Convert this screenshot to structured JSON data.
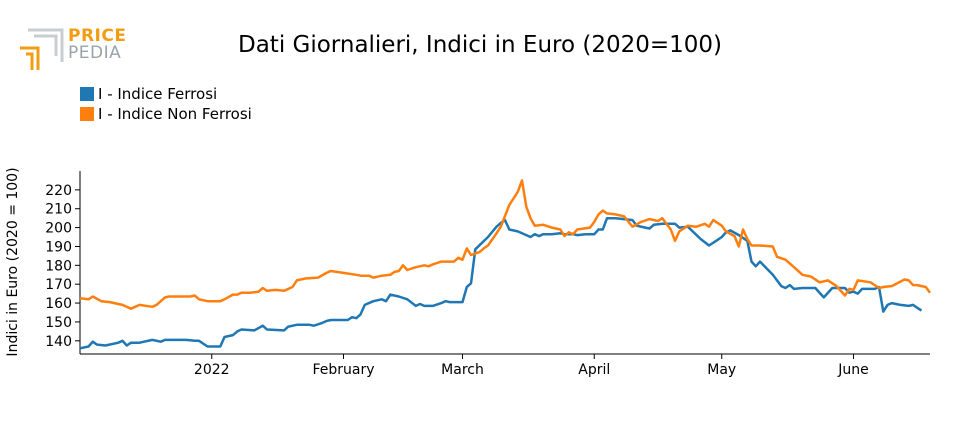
{
  "brand": {
    "line1": "PRICE",
    "line2": "PEDIA"
  },
  "chart_data": {
    "type": "line",
    "title": "Dati Giornalieri, Indici in Euro (2020=100)",
    "ylabel": "Indici in Euro (2020 = 100)",
    "xlabel": "",
    "ylim": [
      133,
      230
    ],
    "xlim": [
      "2021-12-01",
      "2022-06-19"
    ],
    "yticks": [
      140,
      150,
      160,
      170,
      180,
      190,
      200,
      210,
      220
    ],
    "xticks": [
      {
        "date": "2022-01-01",
        "label": "2022"
      },
      {
        "date": "2022-02-01",
        "label": "February"
      },
      {
        "date": "2022-03-01",
        "label": "March"
      },
      {
        "date": "2022-04-01",
        "label": "April"
      },
      {
        "date": "2022-05-01",
        "label": "May"
      },
      {
        "date": "2022-06-01",
        "label": "June"
      }
    ],
    "legend_position": "top-left",
    "series": [
      {
        "name": "I - Indice Ferrosi",
        "color": "#1f77b4",
        "points": [
          [
            "2021-12-01",
            136
          ],
          [
            "2021-12-03",
            137
          ],
          [
            "2021-12-04",
            139.5
          ],
          [
            "2021-12-05",
            138
          ],
          [
            "2021-12-07",
            137.5
          ],
          [
            "2021-12-10",
            139
          ],
          [
            "2021-12-11",
            140
          ],
          [
            "2021-12-12",
            137.5
          ],
          [
            "2021-12-13",
            139
          ],
          [
            "2021-12-15",
            139
          ],
          [
            "2021-12-18",
            140.5
          ],
          [
            "2021-12-20",
            139.5
          ],
          [
            "2021-12-21",
            140.5
          ],
          [
            "2021-12-24",
            140.5
          ],
          [
            "2021-12-26",
            140.5
          ],
          [
            "2021-12-28",
            140
          ],
          [
            "2021-12-29",
            140
          ],
          [
            "2021-12-31",
            137
          ],
          [
            "2022-01-03",
            137
          ],
          [
            "2022-01-04",
            142
          ],
          [
            "2022-01-06",
            143
          ],
          [
            "2022-01-07",
            145
          ],
          [
            "2022-01-08",
            146
          ],
          [
            "2022-01-11",
            145.5
          ],
          [
            "2022-01-13",
            148
          ],
          [
            "2022-01-14",
            146
          ],
          [
            "2022-01-18",
            145.5
          ],
          [
            "2022-01-19",
            147.5
          ],
          [
            "2022-01-21",
            148.5
          ],
          [
            "2022-01-24",
            148.5
          ],
          [
            "2022-01-25",
            148
          ],
          [
            "2022-01-27",
            149.5
          ],
          [
            "2022-01-28",
            150.5
          ],
          [
            "2022-01-29",
            151
          ],
          [
            "2022-02-02",
            151
          ],
          [
            "2022-02-03",
            152.5
          ],
          [
            "2022-02-04",
            152
          ],
          [
            "2022-02-05",
            154
          ],
          [
            "2022-02-06",
            159
          ],
          [
            "2022-02-08",
            161
          ],
          [
            "2022-02-10",
            162
          ],
          [
            "2022-02-11",
            161
          ],
          [
            "2022-02-12",
            164.5
          ],
          [
            "2022-02-14",
            163.5
          ],
          [
            "2022-02-16",
            162
          ],
          [
            "2022-02-18",
            158.5
          ],
          [
            "2022-02-19",
            159.5
          ],
          [
            "2022-02-20",
            158.5
          ],
          [
            "2022-02-22",
            158.5
          ],
          [
            "2022-02-24",
            160
          ],
          [
            "2022-02-25",
            161
          ],
          [
            "2022-02-26",
            160.5
          ],
          [
            "2022-02-28",
            160.5
          ],
          [
            "2022-03-01",
            160.5
          ],
          [
            "2022-03-02",
            168.5
          ],
          [
            "2022-03-03",
            170.5
          ],
          [
            "2022-03-04",
            188.5
          ],
          [
            "2022-03-07",
            195
          ],
          [
            "2022-03-09",
            200.5
          ],
          [
            "2022-03-10",
            202.5
          ],
          [
            "2022-03-11",
            204
          ],
          [
            "2022-03-12",
            199
          ],
          [
            "2022-03-14",
            198
          ],
          [
            "2022-03-16",
            196
          ],
          [
            "2022-03-17",
            195
          ],
          [
            "2022-03-18",
            196.5
          ],
          [
            "2022-03-19",
            195.5
          ],
          [
            "2022-03-20",
            196.5
          ],
          [
            "2022-03-22",
            196.5
          ],
          [
            "2022-03-24",
            197
          ],
          [
            "2022-03-25",
            196.5
          ],
          [
            "2022-03-27",
            196.5
          ],
          [
            "2022-03-28",
            196
          ],
          [
            "2022-03-30",
            196.5
          ],
          [
            "2022-04-01",
            196.5
          ],
          [
            "2022-04-02",
            199
          ],
          [
            "2022-04-03",
            199
          ],
          [
            "2022-04-04",
            205
          ],
          [
            "2022-04-06",
            205
          ],
          [
            "2022-04-08",
            204.5
          ],
          [
            "2022-04-10",
            204
          ],
          [
            "2022-04-11",
            201
          ],
          [
            "2022-04-13",
            200
          ],
          [
            "2022-04-14",
            199.5
          ],
          [
            "2022-04-15",
            201.5
          ],
          [
            "2022-04-17",
            202
          ],
          [
            "2022-04-20",
            202
          ],
          [
            "2022-04-21",
            200
          ],
          [
            "2022-04-23",
            200.5
          ],
          [
            "2022-04-26",
            194
          ],
          [
            "2022-04-28",
            190.5
          ],
          [
            "2022-04-30",
            193.5
          ],
          [
            "2022-05-01",
            195
          ],
          [
            "2022-05-02",
            197.5
          ],
          [
            "2022-05-03",
            198.5
          ],
          [
            "2022-05-05",
            196
          ],
          [
            "2022-05-07",
            193
          ],
          [
            "2022-05-08",
            182
          ],
          [
            "2022-05-09",
            179.5
          ],
          [
            "2022-05-10",
            182
          ],
          [
            "2022-05-13",
            175
          ],
          [
            "2022-05-15",
            169
          ],
          [
            "2022-05-16",
            168
          ],
          [
            "2022-05-17",
            169.5
          ],
          [
            "2022-05-18",
            167.5
          ],
          [
            "2022-05-20",
            168
          ],
          [
            "2022-05-23",
            168
          ],
          [
            "2022-05-25",
            163
          ],
          [
            "2022-05-27",
            168
          ],
          [
            "2022-05-30",
            168
          ],
          [
            "2022-05-31",
            165.5
          ],
          [
            "2022-06-01",
            166
          ],
          [
            "2022-06-02",
            165
          ],
          [
            "2022-06-03",
            167.5
          ],
          [
            "2022-06-06",
            167.5
          ],
          [
            "2022-06-07",
            168.5
          ],
          [
            "2022-06-08",
            155.5
          ],
          [
            "2022-06-09",
            159
          ],
          [
            "2022-06-10",
            160
          ],
          [
            "2022-06-12",
            159
          ],
          [
            "2022-06-14",
            158.5
          ],
          [
            "2022-06-15",
            159
          ],
          [
            "2022-06-16",
            157.5
          ],
          [
            "2022-06-17",
            156
          ]
        ]
      },
      {
        "name": "I - Indice Non Ferrosi",
        "color": "#ff7f0e",
        "points": [
          [
            "2021-12-01",
            162.5
          ],
          [
            "2021-12-03",
            162
          ],
          [
            "2021-12-04",
            163.5
          ],
          [
            "2021-12-06",
            161
          ],
          [
            "2021-12-08",
            160.5
          ],
          [
            "2021-12-11",
            159
          ],
          [
            "2021-12-13",
            157
          ],
          [
            "2021-12-14",
            158
          ],
          [
            "2021-12-15",
            159
          ],
          [
            "2021-12-18",
            158
          ],
          [
            "2021-12-19",
            159
          ],
          [
            "2021-12-21",
            163
          ],
          [
            "2021-12-22",
            163.5
          ],
          [
            "2021-12-24",
            163.5
          ],
          [
            "2021-12-27",
            163.5
          ],
          [
            "2021-12-28",
            164
          ],
          [
            "2021-12-29",
            162
          ],
          [
            "2021-12-31",
            161
          ],
          [
            "2022-01-03",
            161
          ],
          [
            "2022-01-04",
            162
          ],
          [
            "2022-01-06",
            164.5
          ],
          [
            "2022-01-07",
            164.5
          ],
          [
            "2022-01-08",
            165.5
          ],
          [
            "2022-01-10",
            165.5
          ],
          [
            "2022-01-12",
            166
          ],
          [
            "2022-01-13",
            168
          ],
          [
            "2022-01-14",
            166.5
          ],
          [
            "2022-01-16",
            167
          ],
          [
            "2022-01-18",
            166.5
          ],
          [
            "2022-01-20",
            168.5
          ],
          [
            "2022-01-21",
            172
          ],
          [
            "2022-01-23",
            173
          ],
          [
            "2022-01-26",
            173.5
          ],
          [
            "2022-01-28",
            176
          ],
          [
            "2022-01-29",
            177
          ],
          [
            "2022-02-01",
            176
          ],
          [
            "2022-02-04",
            175
          ],
          [
            "2022-02-05",
            174.5
          ],
          [
            "2022-02-07",
            174.5
          ],
          [
            "2022-02-08",
            173.5
          ],
          [
            "2022-02-10",
            174.5
          ],
          [
            "2022-02-12",
            175
          ],
          [
            "2022-02-13",
            176.5
          ],
          [
            "2022-02-14",
            177
          ],
          [
            "2022-02-15",
            180
          ],
          [
            "2022-02-16",
            177.5
          ],
          [
            "2022-02-18",
            179
          ],
          [
            "2022-02-20",
            180
          ],
          [
            "2022-02-21",
            179.5
          ],
          [
            "2022-02-22",
            180.5
          ],
          [
            "2022-02-24",
            182
          ],
          [
            "2022-02-27",
            182
          ],
          [
            "2022-02-28",
            184
          ],
          [
            "2022-03-01",
            183
          ],
          [
            "2022-03-02",
            189
          ],
          [
            "2022-03-03",
            185.5
          ],
          [
            "2022-03-05",
            187
          ],
          [
            "2022-03-06",
            189
          ],
          [
            "2022-03-07",
            190.5
          ],
          [
            "2022-03-09",
            197
          ],
          [
            "2022-03-10",
            200.5
          ],
          [
            "2022-03-12",
            212
          ],
          [
            "2022-03-14",
            219
          ],
          [
            "2022-03-15",
            225
          ],
          [
            "2022-03-16",
            211
          ],
          [
            "2022-03-17",
            205
          ],
          [
            "2022-03-18",
            201
          ],
          [
            "2022-03-20",
            201.5
          ],
          [
            "2022-03-22",
            200
          ],
          [
            "2022-03-24",
            199
          ],
          [
            "2022-03-25",
            195.5
          ],
          [
            "2022-03-26",
            197.5
          ],
          [
            "2022-03-27",
            196.5
          ],
          [
            "2022-03-28",
            199
          ],
          [
            "2022-03-31",
            200
          ],
          [
            "2022-04-01",
            203
          ],
          [
            "2022-04-02",
            207
          ],
          [
            "2022-04-03",
            209
          ],
          [
            "2022-04-04",
            207.5
          ],
          [
            "2022-04-06",
            207
          ],
          [
            "2022-04-08",
            206
          ],
          [
            "2022-04-10",
            200.5
          ],
          [
            "2022-04-12",
            203
          ],
          [
            "2022-04-14",
            204.5
          ],
          [
            "2022-04-16",
            203.5
          ],
          [
            "2022-04-17",
            205
          ],
          [
            "2022-04-19",
            199
          ],
          [
            "2022-04-20",
            193
          ],
          [
            "2022-04-21",
            198
          ],
          [
            "2022-04-23",
            201
          ],
          [
            "2022-04-25",
            200.5
          ],
          [
            "2022-04-27",
            202
          ],
          [
            "2022-04-28",
            200.5
          ],
          [
            "2022-04-29",
            204
          ],
          [
            "2022-05-01",
            201
          ],
          [
            "2022-05-02",
            198
          ],
          [
            "2022-05-04",
            195.5
          ],
          [
            "2022-05-05",
            190
          ],
          [
            "2022-05-06",
            199
          ],
          [
            "2022-05-07",
            194
          ],
          [
            "2022-05-08",
            190.5
          ],
          [
            "2022-05-10",
            190.5
          ],
          [
            "2022-05-13",
            190
          ],
          [
            "2022-05-14",
            184.5
          ],
          [
            "2022-05-16",
            183
          ],
          [
            "2022-05-18",
            179
          ],
          [
            "2022-05-20",
            175
          ],
          [
            "2022-05-22",
            174
          ],
          [
            "2022-05-24",
            171
          ],
          [
            "2022-05-26",
            172
          ],
          [
            "2022-05-28",
            169
          ],
          [
            "2022-05-30",
            164
          ],
          [
            "2022-05-31",
            167.5
          ],
          [
            "2022-06-01",
            167
          ],
          [
            "2022-06-02",
            172
          ],
          [
            "2022-06-05",
            171
          ],
          [
            "2022-06-07",
            168
          ],
          [
            "2022-06-08",
            168.5
          ],
          [
            "2022-06-10",
            169
          ],
          [
            "2022-06-13",
            172.5
          ],
          [
            "2022-06-14",
            172
          ],
          [
            "2022-06-15",
            169.5
          ],
          [
            "2022-06-16",
            169.5
          ],
          [
            "2022-06-17",
            169
          ],
          [
            "2022-06-18",
            168.5
          ],
          [
            "2022-06-19",
            165.5
          ]
        ]
      }
    ]
  }
}
